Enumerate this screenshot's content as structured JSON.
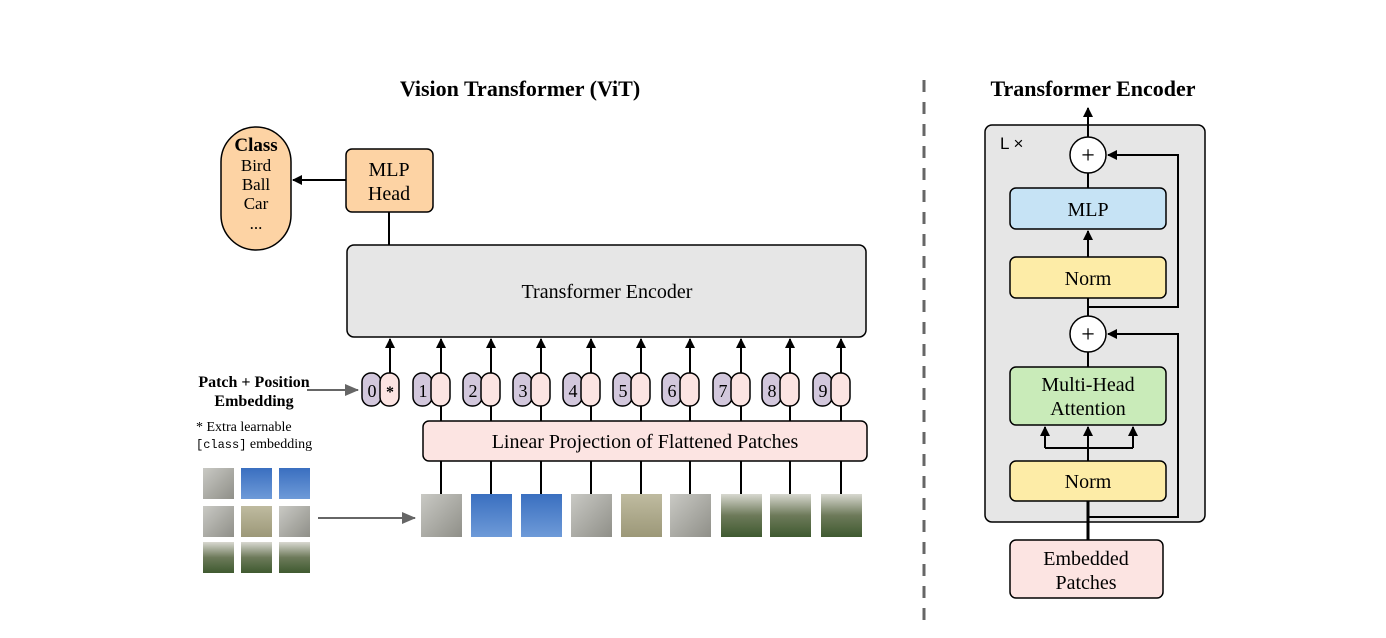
{
  "left": {
    "title": "Vision Transformer (ViT)",
    "class_box": {
      "heading": "Class",
      "items": [
        "Bird",
        "Ball",
        "Car",
        "..."
      ]
    },
    "mlp_head": [
      "MLP",
      "Head"
    ],
    "encoder_label": "Transformer Encoder",
    "embedding_label": [
      "Patch + Position",
      "Embedding"
    ],
    "note_line1": "* Extra learnable",
    "note_code": "[class]",
    "note_line2": " embedding",
    "tokens": [
      "0",
      "1",
      "2",
      "3",
      "4",
      "5",
      "6",
      "7",
      "8",
      "9"
    ],
    "class_token_mark": "*",
    "projection_label": "Linear Projection of Flattened Patches"
  },
  "right": {
    "title": "Transformer Encoder",
    "repeat_label": "L ×",
    "plus": "+",
    "mlp": "MLP",
    "norm": "Norm",
    "attention": [
      "Multi-Head",
      "Attention"
    ],
    "input": [
      "Embedded",
      "Patches"
    ]
  },
  "colors": {
    "orange": "#fdd3a4",
    "grey": "#e6e6e6",
    "pink": "#fce4e2",
    "purple": "#d2c7dc",
    "blue": "#c6e3f5",
    "yellow": "#fdeca7",
    "green": "#c9ebb9"
  }
}
